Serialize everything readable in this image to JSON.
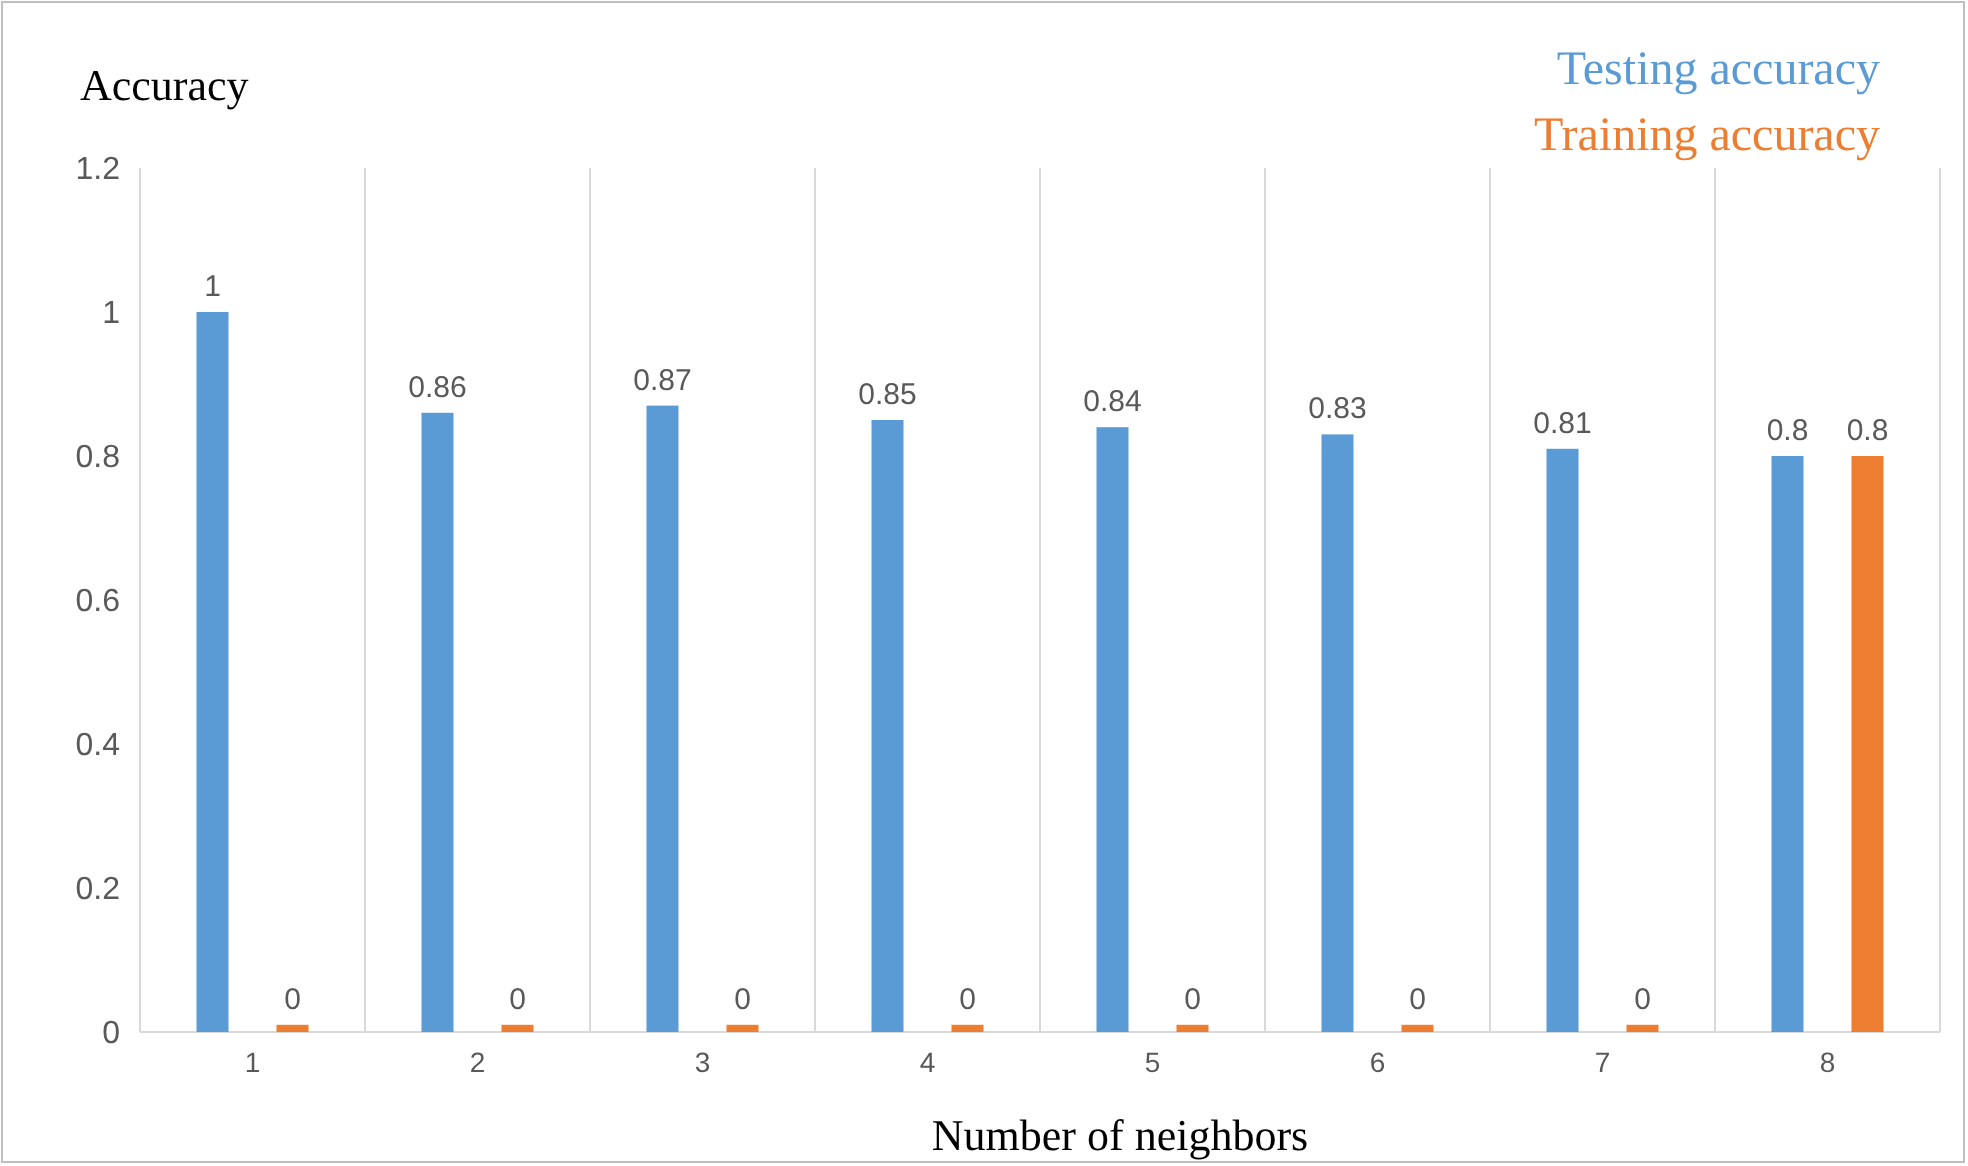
{
  "chart_data": {
    "type": "bar",
    "xlabel": "Number of neighbors",
    "ylabel": "Accuracy",
    "categories": [
      "1",
      "2",
      "3",
      "4",
      "5",
      "6",
      "7",
      "8"
    ],
    "series": [
      {
        "name": "Testing accuracy",
        "color": "#5b9bd5",
        "values": [
          1,
          0.86,
          0.87,
          0.85,
          0.84,
          0.83,
          0.81,
          0.8
        ],
        "value_labels": [
          "1",
          "0.86",
          "0.87",
          "0.85",
          "0.84",
          "0.83",
          "0.81",
          "0.8"
        ]
      },
      {
        "name": "Training accuracy",
        "color": "#ed7d31",
        "values": [
          0.01,
          0.01,
          0.01,
          0.01,
          0.01,
          0.01,
          0.01,
          0.8
        ],
        "value_labels": [
          "0",
          "0",
          "0",
          "0",
          "0",
          "0",
          "0",
          "0.8"
        ]
      }
    ],
    "ylim": [
      0,
      1.2
    ],
    "yticks": [
      0,
      0.2,
      0.4,
      0.6,
      0.8,
      1,
      1.2
    ],
    "grid": "x",
    "legend": "top right"
  }
}
